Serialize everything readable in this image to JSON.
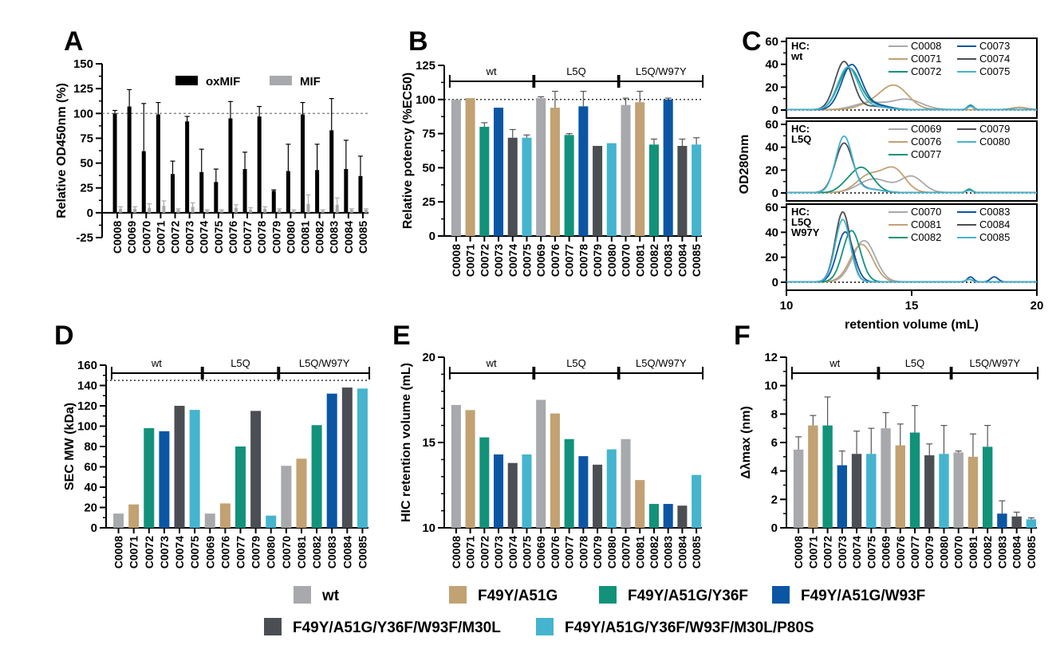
{
  "colors": {
    "wt": "#a7a9ac",
    "F49Y/A51G": "#c2a172",
    "F49Y/A51G/Y36F": "#12927a",
    "F49Y/A51G/W93F": "#0b56a4",
    "F49Y/A51G/Y36F/W93F/M30L": "#4b4e53",
    "F49Y/A51G/Y36F/W93F/M30L/P80S": "#45b4cf"
  },
  "legend": {
    "row1": [
      "wt",
      "F49Y/A51G",
      "F49Y/A51G/Y36F",
      "F49Y/A51G/W93F"
    ],
    "row2": [
      "F49Y/A51G/Y36F/W93F/M30L",
      "F49Y/A51G/Y36F/W93F/M30L/P80S"
    ]
  },
  "group_labels": [
    "wt",
    "L5Q",
    "L5Q/W97Y"
  ],
  "chart_data": [
    {
      "panel": "A",
      "type": "bar",
      "ylabel": "Relative OD450nm (%)",
      "ylim": [
        -25,
        150
      ],
      "yticks": [
        -25,
        0,
        25,
        50,
        75,
        100,
        125,
        150
      ],
      "reference_line": 100,
      "categories": [
        "C0008",
        "C0069",
        "C0070",
        "C0071",
        "C0072",
        "C0073",
        "C0074",
        "C0075",
        "C0076",
        "C0077",
        "C0078",
        "C0079",
        "C0080",
        "C0081",
        "C0082",
        "C0083",
        "C0084",
        "C0085"
      ],
      "series": [
        {
          "name": "oxMIF",
          "color": "#000000",
          "values": [
            100,
            107,
            62,
            99,
            39,
            92,
            41,
            31,
            95,
            44,
            97,
            22,
            42,
            99,
            43,
            83,
            44,
            37
          ],
          "errors": [
            3,
            17,
            48,
            12,
            13,
            5,
            23,
            13,
            17,
            17,
            10,
            1,
            27,
            12,
            26,
            32,
            29,
            20
          ]
        },
        {
          "name": "MIF",
          "color": "#a7a9ac",
          "values": [
            4,
            4,
            5,
            7,
            3,
            6,
            2,
            2,
            5,
            3,
            4,
            3,
            2,
            9,
            2,
            8,
            3,
            3
          ],
          "errors": [
            2,
            2,
            4,
            5,
            1,
            4,
            1,
            1,
            3,
            2,
            2,
            1,
            1,
            9,
            1,
            7,
            1,
            1
          ]
        }
      ],
      "legend_placement": "top-right"
    },
    {
      "panel": "B",
      "type": "bar",
      "ylabel": "Relative potency (%EC50)",
      "ylim": [
        0,
        125
      ],
      "yticks": [
        0,
        25,
        50,
        75,
        100,
        125
      ],
      "reference_line": 100,
      "categories": [
        "C0008",
        "C0071",
        "C0072",
        "C0073",
        "C0074",
        "C0075",
        "C0069",
        "C0076",
        "C0077",
        "C0078",
        "C0079",
        "C0080",
        "C0070",
        "C0081",
        "C0082",
        "C0083",
        "C0084",
        "C0085"
      ],
      "values": [
        100,
        101,
        80,
        94,
        72,
        72,
        101,
        94,
        74,
        95,
        66,
        68,
        96,
        98,
        67,
        100,
        66,
        67
      ],
      "errors": [
        0,
        0,
        3,
        0,
        6,
        2,
        1,
        12,
        1,
        11,
        0,
        0,
        5,
        8,
        4,
        1,
        5,
        5
      ]
    },
    {
      "panel": "C",
      "type": "line",
      "xlabel": "retention volume (mL)",
      "ylabel": "OD280nm",
      "xlim": [
        10,
        20
      ],
      "xticks": [
        10,
        15,
        20
      ],
      "ylim": [
        0,
        60
      ],
      "yticks": [
        0,
        20,
        40,
        60
      ],
      "subplots": [
        {
          "label": "HC:\nwt",
          "series": [
            {
              "name": "C0008",
              "group": "wt",
              "peaks": [
                [
                  13.3,
                  6,
                  0.6
                ],
                [
                  14.8,
                  9,
                  0.6
                ],
                [
                  19.3,
                  2,
                  0.3
                ]
              ]
            },
            {
              "name": "C0071",
              "group": "F49Y/A51G",
              "peaks": [
                [
                  14.3,
                  21,
                  0.55
                ],
                [
                  13.3,
                  4,
                  0.5
                ],
                [
                  19.3,
                  2,
                  0.3
                ]
              ]
            },
            {
              "name": "C0072",
              "group": "F49Y/A51G/Y36F",
              "peaks": [
                [
                  12.5,
                  36,
                  0.42
                ],
                [
                  13.5,
                  4,
                  0.5
                ],
                [
                  17.35,
                  4,
                  0.12
                ]
              ]
            },
            {
              "name": "C0073",
              "group": "F49Y/A51G/W93F",
              "peaks": [
                [
                  12.6,
                  39,
                  0.4
                ],
                [
                  13.6,
                  4,
                  0.5
                ],
                [
                  17.35,
                  3,
                  0.12
                ]
              ]
            },
            {
              "name": "C0074",
              "group": "F49Y/A51G/Y36F/W93F/M30L",
              "peaks": [
                [
                  12.3,
                  42,
                  0.36
                ],
                [
                  13.5,
                  3,
                  0.5
                ],
                [
                  17.35,
                  3,
                  0.12
                ]
              ]
            },
            {
              "name": "C0075",
              "group": "F49Y/A51G/Y36F/W93F/M30L/P80S",
              "peaks": [
                [
                  12.45,
                  37,
                  0.4
                ],
                [
                  13.5,
                  3,
                  0.5
                ],
                [
                  17.35,
                  3,
                  0.12
                ]
              ]
            }
          ]
        },
        {
          "label": "HC:\nL5Q",
          "series": [
            {
              "name": "C0069",
              "group": "wt",
              "peaks": [
                [
                  13.5,
                  12,
                  0.6
                ],
                [
                  15.0,
                  14,
                  0.45
                ],
                [
                  17.3,
                  3,
                  0.12
                ]
              ]
            },
            {
              "name": "C0076",
              "group": "F49Y/A51G",
              "peaks": [
                [
                  13.3,
                  15,
                  0.5
                ],
                [
                  14.3,
                  20,
                  0.45
                ],
                [
                  17.3,
                  3,
                  0.12
                ]
              ]
            },
            {
              "name": "C0077",
              "group": "F49Y/A51G/Y36F",
              "peaks": [
                [
                  13.0,
                  22,
                  0.45
                ],
                [
                  12.3,
                  3,
                  0.3
                ],
                [
                  17.3,
                  3,
                  0.12
                ]
              ]
            },
            {
              "name": "C0079",
              "group": "F49Y/A51G/Y36F/W93F/M30L",
              "peaks": [
                [
                  12.3,
                  43,
                  0.35
                ],
                [
                  13.3,
                  3,
                  0.5
                ],
                [
                  17.3,
                  2,
                  0.12
                ]
              ]
            },
            {
              "name": "C0080",
              "group": "F49Y/A51G/Y36F/W93F/M30L/P80S",
              "peaks": [
                [
                  12.3,
                  49,
                  0.33
                ],
                [
                  13.3,
                  3,
                  0.5
                ],
                [
                  17.3,
                  2,
                  0.12
                ]
              ]
            }
          ]
        },
        {
          "label": "HC:\nL5Q\nW97Y",
          "series": [
            {
              "name": "C0070",
              "group": "wt",
              "peaks": [
                [
                  13.1,
                  33,
                  0.45
                ],
                [
                  17.3,
                  2,
                  0.12
                ]
              ]
            },
            {
              "name": "C0081",
              "group": "F49Y/A51G",
              "peaks": [
                [
                  13.0,
                  30,
                  0.45
                ],
                [
                  17.3,
                  2,
                  0.12
                ]
              ]
            },
            {
              "name": "C0082",
              "group": "F49Y/A51G/Y36F",
              "peaks": [
                [
                  12.6,
                  41,
                  0.35
                ],
                [
                  17.3,
                  2,
                  0.12
                ]
              ]
            },
            {
              "name": "C0083",
              "group": "F49Y/A51G/W93F",
              "peaks": [
                [
                  12.35,
                  40,
                  0.33
                ],
                [
                  17.35,
                  4,
                  0.12
                ],
                [
                  18.3,
                  4,
                  0.15
                ]
              ]
            },
            {
              "name": "C0084",
              "group": "F49Y/A51G/Y36F/W93F/M30L",
              "peaks": [
                [
                  12.25,
                  56,
                  0.3
                ],
                [
                  17.3,
                  2,
                  0.12
                ]
              ]
            },
            {
              "name": "C0085",
              "group": "F49Y/A51G/Y36F/W93F/M30L/P80S",
              "peaks": [
                [
                  12.25,
                  50,
                  0.3
                ],
                [
                  17.3,
                  2,
                  0.12
                ]
              ]
            }
          ]
        }
      ]
    },
    {
      "panel": "D",
      "type": "bar",
      "ylabel": "SEC MW (kDa)",
      "ylim": [
        0,
        160
      ],
      "yticks": [
        0,
        20,
        40,
        60,
        80,
        100,
        120,
        140,
        160
      ],
      "reference_line": 145,
      "categories": [
        "C0008",
        "C0071",
        "C0072",
        "C0073",
        "C0074",
        "C0075",
        "C0069",
        "C0076",
        "C0077",
        "C0079",
        "C0080",
        "C0070",
        "C0081",
        "C0082",
        "C0083",
        "C0084",
        "C0085"
      ],
      "values": [
        14,
        23,
        98,
        95,
        120,
        116,
        14,
        24,
        80,
        115,
        12,
        61,
        68,
        101,
        132,
        138,
        137
      ]
    },
    {
      "panel": "E",
      "type": "bar",
      "ylabel": "HIC retention volume (mL)",
      "ylim": [
        10,
        20
      ],
      "yticks": [
        10,
        15,
        20
      ],
      "categories": [
        "C0008",
        "C0071",
        "C0072",
        "C0073",
        "C0074",
        "C0075",
        "C0069",
        "C0076",
        "C0077",
        "C0078",
        "C0079",
        "C0080",
        "C0070",
        "C0081",
        "C0082",
        "C0083",
        "C0084",
        "C0085"
      ],
      "values": [
        17.2,
        16.9,
        15.3,
        14.3,
        13.8,
        14.3,
        17.5,
        16.7,
        15.2,
        14.2,
        13.7,
        14.6,
        15.2,
        12.8,
        11.4,
        11.4,
        11.3,
        13.1
      ]
    },
    {
      "panel": "F",
      "type": "bar",
      "ylabel": "Δλmax (nm)",
      "ylim": [
        0,
        12
      ],
      "yticks": [
        0,
        2,
        4,
        6,
        8,
        10,
        12
      ],
      "categories": [
        "C0008",
        "C0071",
        "C0072",
        "C0073",
        "C0074",
        "C0075",
        "C0069",
        "C0076",
        "C0077",
        "C0079",
        "C0080",
        "C0070",
        "C0081",
        "C0082",
        "C0083",
        "C0084",
        "C0085"
      ],
      "values": [
        5.5,
        7.2,
        7.2,
        4.4,
        5.2,
        5.2,
        7.0,
        5.8,
        6.7,
        5.1,
        5.2,
        5.3,
        5.0,
        5.7,
        1.0,
        0.8,
        0.6
      ],
      "errors": [
        0.9,
        0.7,
        2.0,
        1.0,
        1.6,
        1.8,
        1.1,
        1.5,
        1.9,
        0.8,
        2.0,
        0.1,
        1.6,
        1.5,
        0.9,
        0.3,
        0.1
      ]
    }
  ]
}
